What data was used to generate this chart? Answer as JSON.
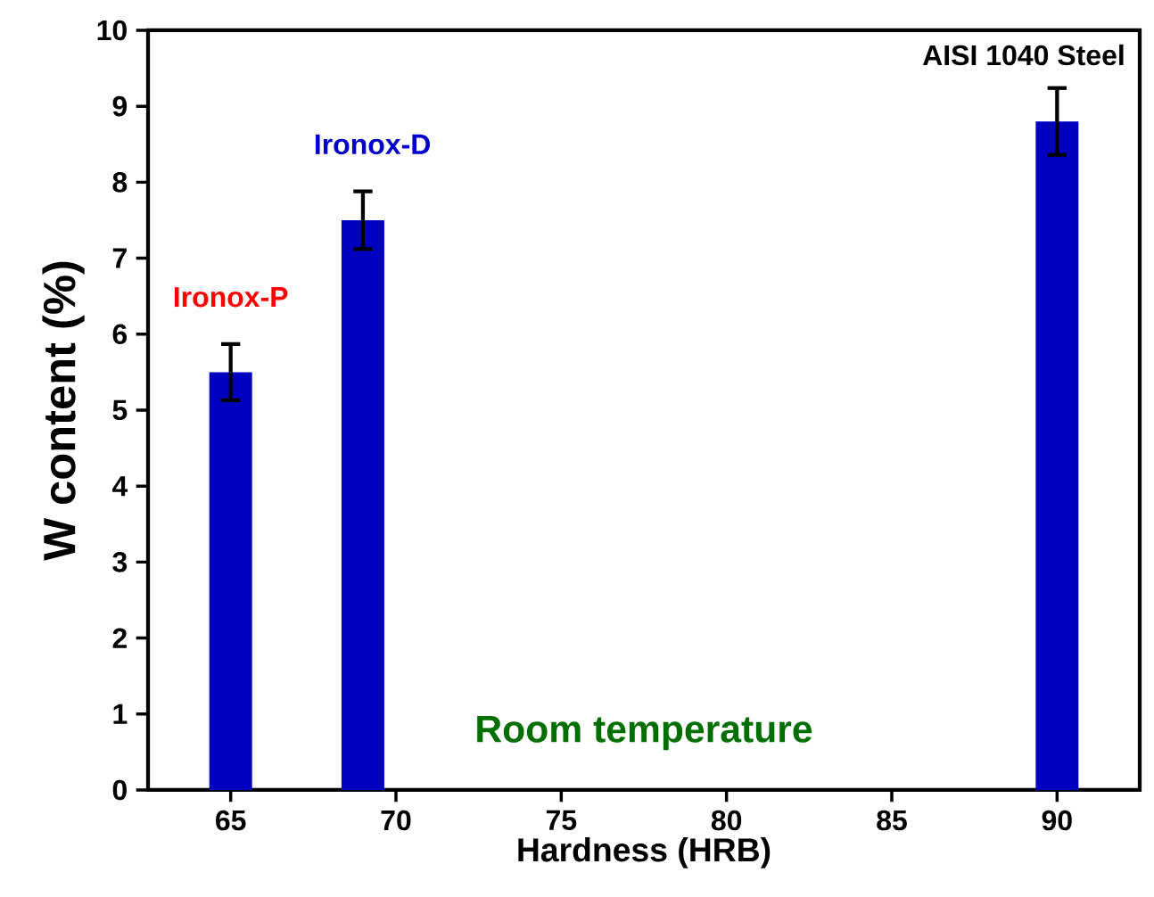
{
  "chart_data": {
    "type": "bar",
    "xlabel": "Hardness (HRB)",
    "ylabel": "W content (%)",
    "x": [
      65,
      69,
      90
    ],
    "values": [
      5.5,
      7.5,
      8.8
    ],
    "errors": [
      0.37,
      0.38,
      0.44
    ],
    "color": "#0000c0",
    "xlim": [
      62.5,
      92.5
    ],
    "xticks": [
      65,
      70,
      75,
      80,
      85,
      90
    ],
    "ylim": [
      0,
      10
    ],
    "yticks": [
      0,
      1,
      2,
      3,
      4,
      5,
      6,
      7,
      8,
      9,
      10
    ],
    "annotations": [
      "Ironox-P",
      "Ironox-D",
      "AISI 1040 Steel",
      "Room temperature"
    ]
  }
}
